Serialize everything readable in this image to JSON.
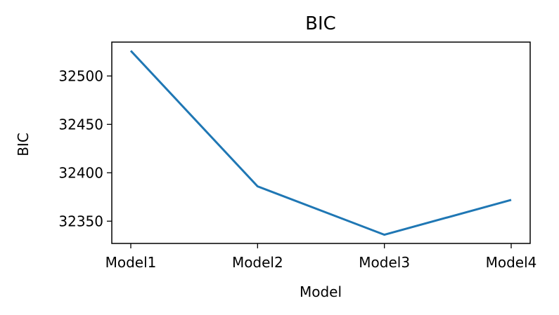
{
  "chart_data": {
    "type": "line",
    "title": "BIC",
    "xlabel": "Model",
    "ylabel": "BIC",
    "categories": [
      "Model1",
      "Model2",
      "Model3",
      "Model4"
    ],
    "series": [
      {
        "values": [
          32526,
          32386,
          32336,
          32372
        ],
        "color": "#1f77b4"
      }
    ],
    "ylim": [
      32327,
      32535
    ],
    "yticks": [
      32350,
      32400,
      32450,
      32500
    ],
    "grid": false,
    "legend": "none"
  }
}
